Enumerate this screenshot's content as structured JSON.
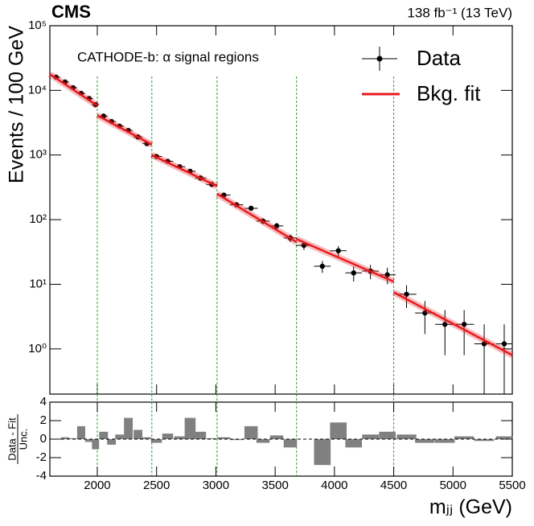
{
  "chart_data": [
    {
      "type": "scatter",
      "title": "CMS",
      "subtitle": "138 fb⁻¹ (13 TeV)",
      "annotation": "CATHODE-b: α signal regions",
      "ylabel": "Events / 100 GeV",
      "log_y": true,
      "legend": "upper right",
      "xlim": [
        1600,
        5500
      ],
      "xticks": [
        2000,
        2500,
        3000,
        3500,
        4000,
        4500,
        5000,
        5500
      ],
      "ylim": [
        0.2,
        100000
      ],
      "yticks": [
        {
          "value": 1,
          "label": "10⁰"
        },
        {
          "value": 10,
          "label": "10¹"
        },
        {
          "value": 100,
          "label": "10²"
        },
        {
          "value": 1000,
          "label": "10³"
        },
        {
          "value": 10000,
          "label": "10⁴"
        },
        {
          "value": 100000,
          "label": "10⁵"
        }
      ],
      "signal_region_edges": [
        2000,
        2460,
        3010,
        3680,
        4500
      ],
      "edge_color": "#2ca02c",
      "series": [
        {
          "name": "Data",
          "color": "#000000",
          "x": [
            1654,
            1728,
            1796,
            1864,
            1931,
            1985,
            2053,
            2120,
            2188,
            2262,
            2343,
            2418,
            2499,
            2594,
            2695,
            2783,
            2871,
            2965,
            3067,
            3175,
            3297,
            3398,
            3513,
            3628,
            3743,
            3898,
            4033,
            4162,
            4304,
            4446,
            4608,
            4763,
            4932,
            5094,
            5263,
            5432
          ],
          "xerr": [
            34,
            34,
            34,
            34,
            34,
            30,
            37,
            37,
            37,
            37,
            37,
            37,
            46,
            46,
            46,
            46,
            46,
            46,
            56,
            56,
            56,
            56,
            56,
            56,
            70,
            70,
            70,
            70,
            70,
            70,
            83,
            83,
            83,
            83,
            83,
            70
          ],
          "values": [
            16000,
            13500,
            11000,
            9000,
            7500,
            6000,
            4000,
            3300,
            2800,
            2400,
            1900,
            1500,
            950,
            800,
            660,
            560,
            440,
            350,
            240,
            170,
            150,
            95,
            80,
            52,
            40,
            19,
            33,
            15,
            16,
            14,
            7,
            3.6,
            2.4,
            2.4,
            1.2,
            1.2
          ],
          "yerr": [
            130,
            120,
            105,
            95,
            90,
            80,
            65,
            60,
            55,
            50,
            45,
            40,
            31,
            28,
            26,
            24,
            21,
            19,
            16,
            13,
            12,
            10,
            9,
            7,
            6,
            4,
            6,
            4,
            4,
            4,
            2.7,
            1.9,
            1.6,
            1.6,
            1.2,
            1.2
          ]
        },
        {
          "name": "Bkg. fit",
          "color": "#e8191e",
          "segments": [
            {
              "x": [
                1600,
                2000
              ],
              "values": [
                17800,
                5800
              ]
            },
            {
              "x": [
                2000,
                2460
              ],
              "values": [
                4100,
                1450
              ]
            },
            {
              "x": [
                2460,
                3010
              ],
              "values": [
                1000,
                330
              ]
            },
            {
              "x": [
                3010,
                3680
              ],
              "values": [
                250,
                45
              ]
            },
            {
              "x": [
                3680,
                4500
              ],
              "values": [
                50,
                11
              ]
            },
            {
              "x": [
                4500,
                5500
              ],
              "values": [
                7.5,
                0.8
              ]
            }
          ]
        }
      ]
    },
    {
      "type": "bar",
      "xlabel": "mⱼⱼ (GeV)",
      "ylabel": [
        "Data - Fit",
        "Unc."
      ],
      "color": "#808080",
      "xlim": [
        1600,
        5500
      ],
      "xticks": [
        2000,
        2500,
        3000,
        3500,
        4000,
        4500,
        5000,
        5500
      ],
      "ylim": [
        -4,
        4
      ],
      "yticks": [
        -4,
        -2,
        0,
        2,
        4
      ],
      "x": [
        1654,
        1728,
        1796,
        1864,
        1931,
        1985,
        2053,
        2120,
        2188,
        2262,
        2343,
        2418,
        2499,
        2594,
        2695,
        2783,
        2871,
        2965,
        3067,
        3175,
        3297,
        3398,
        3513,
        3628,
        3743,
        3898,
        4033,
        4162,
        4304,
        4446,
        4608,
        4763,
        4932,
        5094,
        5263,
        5432
      ],
      "xerr": [
        34,
        34,
        34,
        34,
        34,
        30,
        37,
        37,
        37,
        37,
        37,
        37,
        46,
        46,
        46,
        46,
        46,
        46,
        56,
        56,
        56,
        56,
        56,
        56,
        70,
        70,
        70,
        70,
        70,
        70,
        83,
        83,
        83,
        83,
        83,
        70
      ],
      "values": [
        0.0,
        0.2,
        0.1,
        1.4,
        -0.3,
        -1.1,
        0.8,
        -0.6,
        0.5,
        2.3,
        1.0,
        0.2,
        -0.4,
        0.6,
        0.3,
        2.3,
        0.8,
        0.1,
        0.2,
        -0.1,
        1.4,
        -0.4,
        0.4,
        -0.9,
        0.0,
        -2.8,
        1.8,
        -0.9,
        0.5,
        0.8,
        0.5,
        -0.4,
        -0.4,
        0.3,
        -0.2,
        0.3
      ]
    }
  ]
}
